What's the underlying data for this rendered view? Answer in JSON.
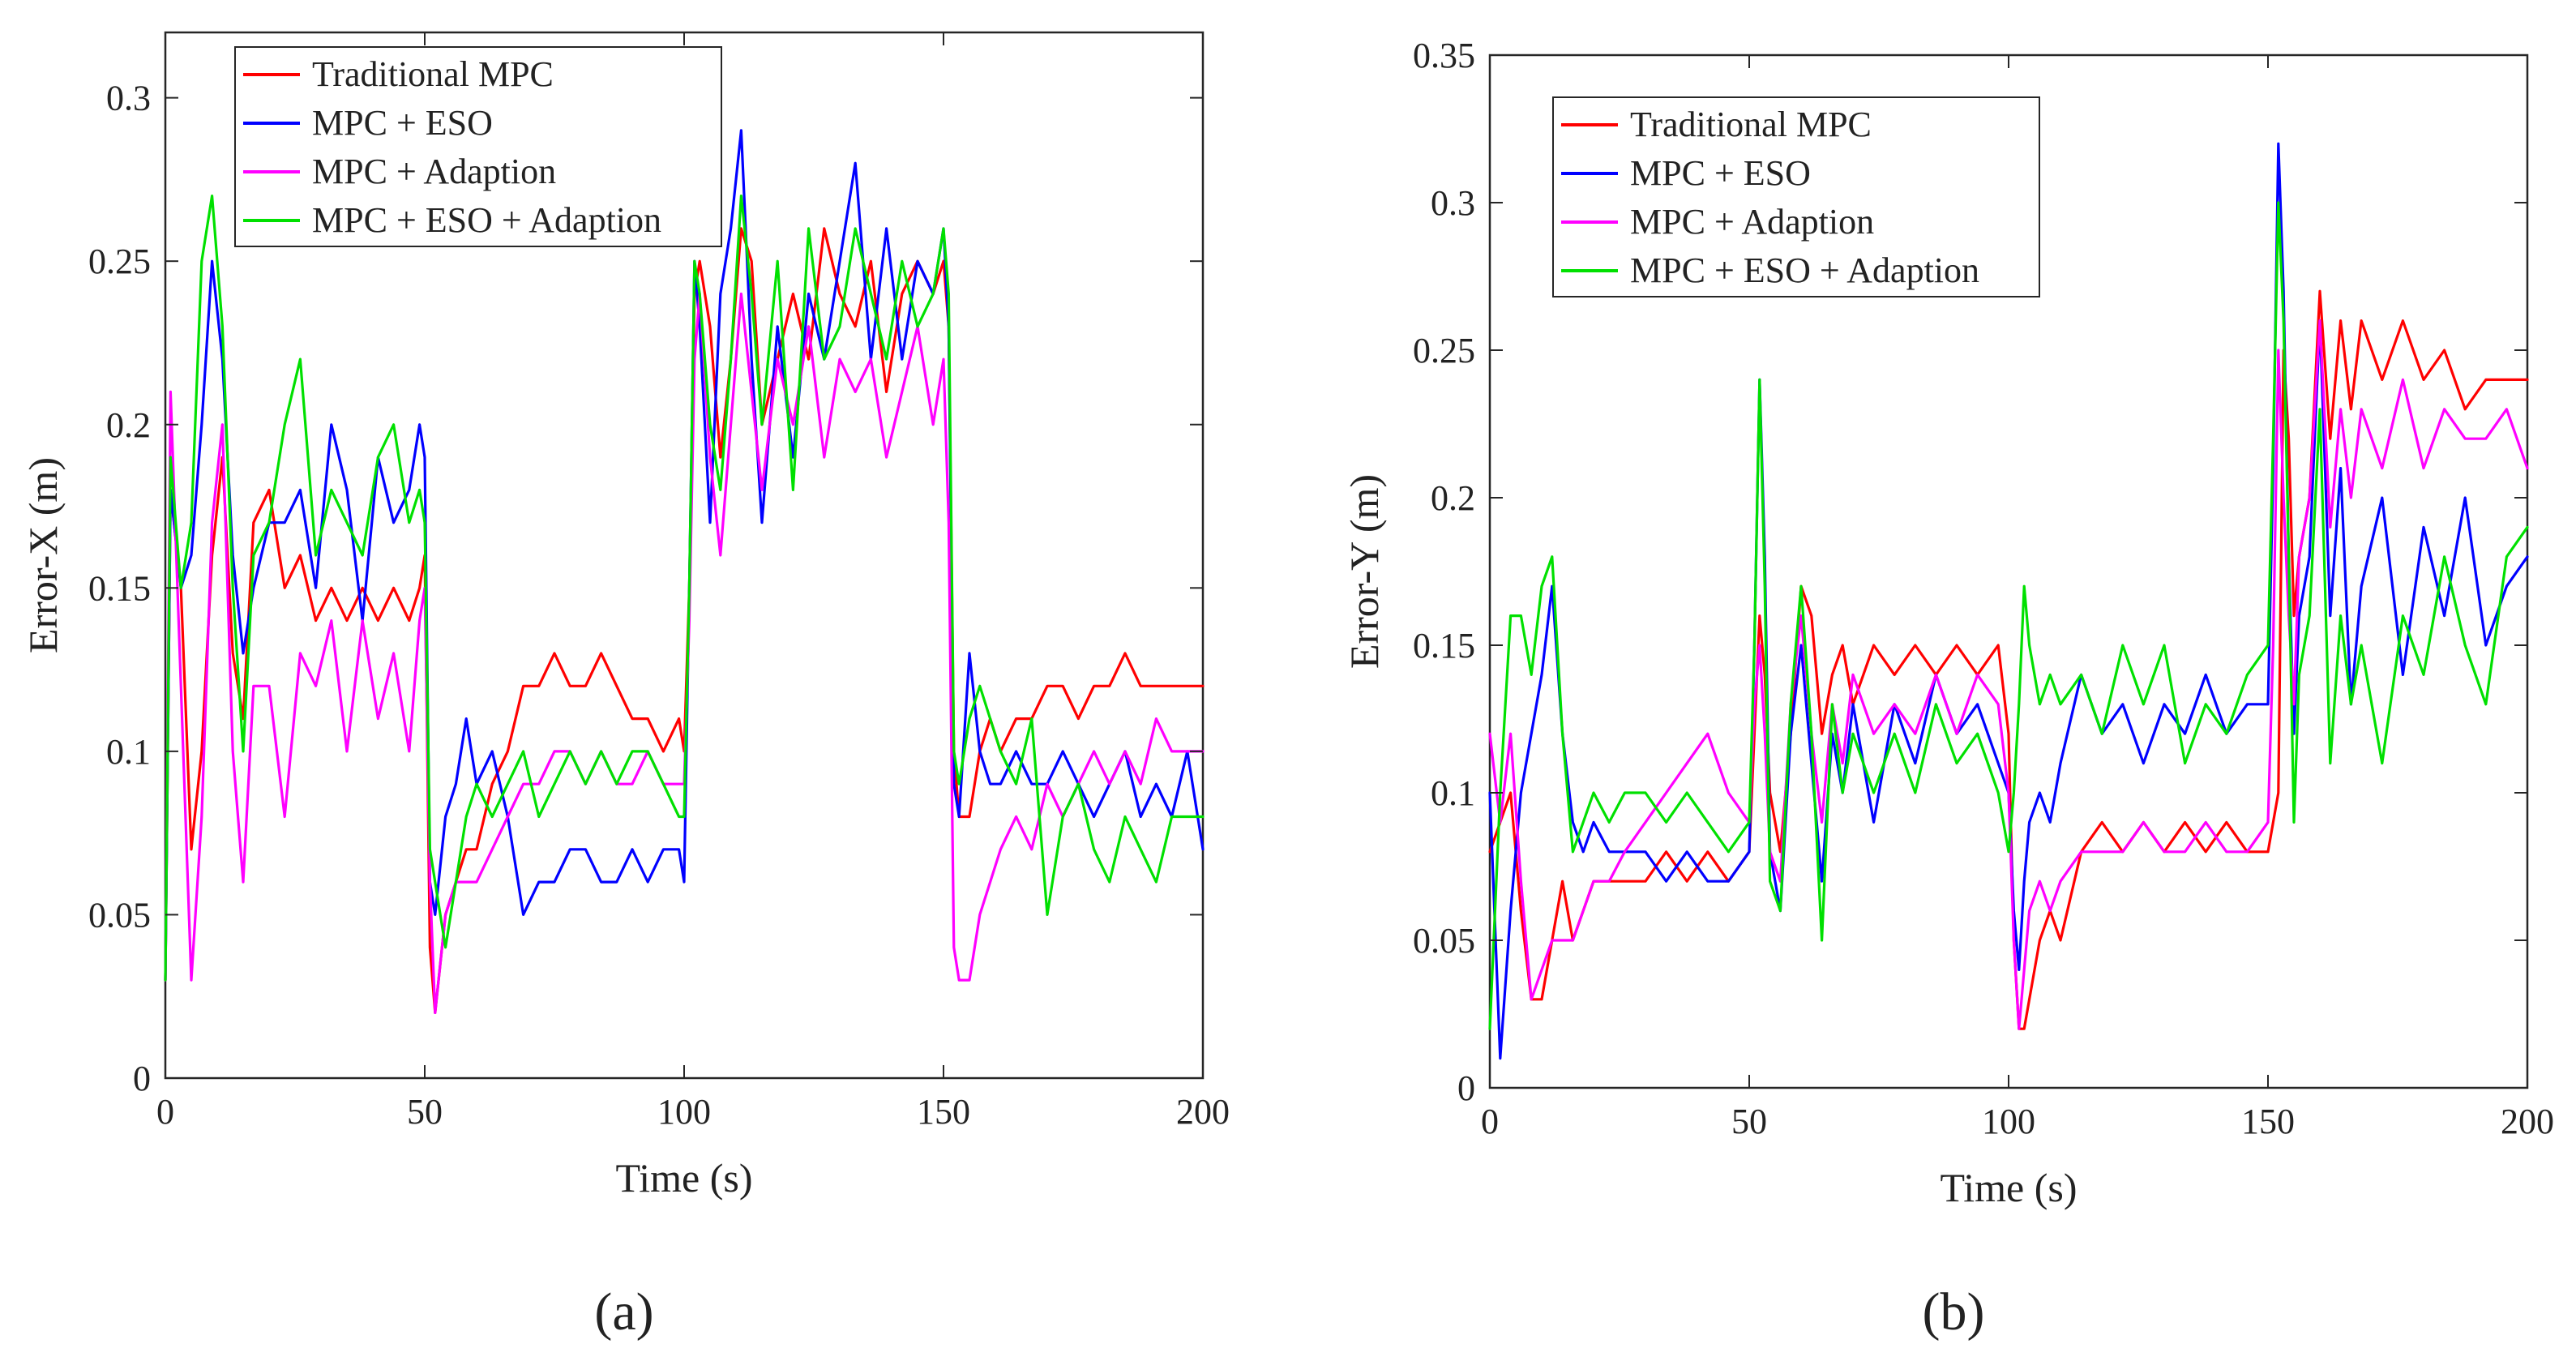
{
  "figure": {
    "panel_labels": [
      "(a)",
      "(b)"
    ]
  },
  "chart_data": [
    {
      "type": "line",
      "panel": "a",
      "xlabel": "Time (s)",
      "ylabel": "Error-X (m)",
      "xlim": [
        0,
        200
      ],
      "ylim": [
        0,
        0.32
      ],
      "xticks": [
        0,
        50,
        100,
        150,
        200
      ],
      "xtick_labels": [
        "0",
        "50",
        "100",
        "150",
        "200"
      ],
      "yticks": [
        0,
        0.05,
        0.1,
        0.15,
        0.2,
        0.25,
        0.3
      ],
      "ytick_labels": [
        "0",
        "0.05",
        "0.1",
        "0.15",
        "0.2",
        "0.25",
        "0.3"
      ],
      "grid": false,
      "legend_position": "top-left",
      "x": [
        0,
        1,
        3,
        5,
        7,
        9,
        11,
        13,
        15,
        17,
        20,
        23,
        26,
        29,
        32,
        35,
        38,
        41,
        44,
        47,
        49,
        50,
        51,
        52,
        54,
        56,
        58,
        60,
        63,
        66,
        69,
        72,
        75,
        78,
        81,
        84,
        87,
        90,
        93,
        96,
        99,
        100,
        101,
        102,
        103,
        105,
        107,
        109,
        111,
        113,
        115,
        118,
        121,
        124,
        127,
        130,
        133,
        136,
        139,
        142,
        145,
        148,
        150,
        151,
        152,
        153,
        155,
        157,
        159,
        161,
        164,
        167,
        170,
        173,
        176,
        179,
        182,
        185,
        188,
        191,
        194,
        197,
        200
      ],
      "series": [
        {
          "name": "Traditional MPC",
          "color": "#ff0000",
          "values": [
            0.03,
            0.18,
            0.15,
            0.07,
            0.1,
            0.16,
            0.19,
            0.13,
            0.11,
            0.17,
            0.18,
            0.15,
            0.16,
            0.14,
            0.15,
            0.14,
            0.15,
            0.14,
            0.15,
            0.14,
            0.15,
            0.16,
            0.04,
            0.02,
            0.05,
            0.06,
            0.07,
            0.07,
            0.09,
            0.1,
            0.12,
            0.12,
            0.13,
            0.12,
            0.12,
            0.13,
            0.12,
            0.11,
            0.11,
            0.1,
            0.11,
            0.1,
            0.15,
            0.24,
            0.25,
            0.23,
            0.19,
            0.22,
            0.26,
            0.25,
            0.2,
            0.22,
            0.24,
            0.22,
            0.26,
            0.24,
            0.23,
            0.25,
            0.21,
            0.24,
            0.25,
            0.24,
            0.25,
            0.23,
            0.1,
            0.08,
            0.08,
            0.1,
            0.11,
            0.1,
            0.11,
            0.11,
            0.12,
            0.12,
            0.11,
            0.12,
            0.12,
            0.13,
            0.12,
            0.12,
            0.12,
            0.12,
            0.12
          ]
        },
        {
          "name": "MPC + ESO",
          "color": "#0000ff",
          "values": [
            0.03,
            0.18,
            0.15,
            0.16,
            0.2,
            0.25,
            0.22,
            0.16,
            0.13,
            0.15,
            0.17,
            0.17,
            0.18,
            0.15,
            0.2,
            0.18,
            0.14,
            0.19,
            0.17,
            0.18,
            0.2,
            0.19,
            0.06,
            0.05,
            0.08,
            0.09,
            0.11,
            0.09,
            0.1,
            0.08,
            0.05,
            0.06,
            0.06,
            0.07,
            0.07,
            0.06,
            0.06,
            0.07,
            0.06,
            0.07,
            0.07,
            0.06,
            0.15,
            0.25,
            0.23,
            0.17,
            0.24,
            0.26,
            0.29,
            0.22,
            0.17,
            0.23,
            0.19,
            0.24,
            0.22,
            0.25,
            0.28,
            0.22,
            0.26,
            0.22,
            0.25,
            0.24,
            0.26,
            0.23,
            0.09,
            0.08,
            0.13,
            0.1,
            0.09,
            0.09,
            0.1,
            0.09,
            0.09,
            0.1,
            0.09,
            0.08,
            0.09,
            0.1,
            0.08,
            0.09,
            0.08,
            0.1,
            0.07
          ]
        },
        {
          "name": "MPC + Adaption",
          "color": "#ff00ff",
          "values": [
            0.03,
            0.21,
            0.12,
            0.03,
            0.08,
            0.17,
            0.2,
            0.1,
            0.06,
            0.12,
            0.12,
            0.08,
            0.13,
            0.12,
            0.14,
            0.1,
            0.14,
            0.11,
            0.13,
            0.1,
            0.14,
            0.15,
            0.06,
            0.02,
            0.05,
            0.06,
            0.06,
            0.06,
            0.07,
            0.08,
            0.09,
            0.09,
            0.1,
            0.1,
            0.09,
            0.1,
            0.09,
            0.09,
            0.1,
            0.09,
            0.09,
            0.09,
            0.14,
            0.22,
            0.24,
            0.19,
            0.16,
            0.2,
            0.24,
            0.21,
            0.18,
            0.22,
            0.2,
            0.23,
            0.19,
            0.22,
            0.21,
            0.22,
            0.19,
            0.21,
            0.23,
            0.2,
            0.22,
            0.17,
            0.04,
            0.03,
            0.03,
            0.05,
            0.06,
            0.07,
            0.08,
            0.07,
            0.09,
            0.08,
            0.09,
            0.1,
            0.09,
            0.1,
            0.09,
            0.11,
            0.1,
            0.1,
            0.1
          ]
        },
        {
          "name": "MPC + ESO + Adaption",
          "color": "#00e000",
          "values": [
            0.03,
            0.19,
            0.15,
            0.17,
            0.25,
            0.27,
            0.23,
            0.15,
            0.1,
            0.16,
            0.17,
            0.2,
            0.22,
            0.16,
            0.18,
            0.17,
            0.16,
            0.19,
            0.2,
            0.17,
            0.18,
            0.17,
            0.07,
            0.06,
            0.04,
            0.06,
            0.08,
            0.09,
            0.08,
            0.09,
            0.1,
            0.08,
            0.09,
            0.1,
            0.09,
            0.1,
            0.09,
            0.1,
            0.1,
            0.09,
            0.08,
            0.08,
            0.15,
            0.25,
            0.24,
            0.2,
            0.18,
            0.22,
            0.27,
            0.24,
            0.2,
            0.25,
            0.18,
            0.26,
            0.22,
            0.23,
            0.26,
            0.24,
            0.22,
            0.25,
            0.23,
            0.24,
            0.26,
            0.24,
            0.1,
            0.09,
            0.11,
            0.12,
            0.11,
            0.1,
            0.09,
            0.11,
            0.05,
            0.08,
            0.09,
            0.07,
            0.06,
            0.08,
            0.07,
            0.06,
            0.08,
            0.08,
            0.08
          ]
        }
      ]
    },
    {
      "type": "line",
      "panel": "b",
      "xlabel": "Time (s)",
      "ylabel": "Error-Y (m)",
      "xlim": [
        0,
        200
      ],
      "ylim": [
        0,
        0.35
      ],
      "xticks": [
        0,
        50,
        100,
        150,
        200
      ],
      "xtick_labels": [
        "0",
        "50",
        "100",
        "150",
        "200"
      ],
      "yticks": [
        0,
        0.05,
        0.1,
        0.15,
        0.2,
        0.25,
        0.3,
        0.35
      ],
      "ytick_labels": [
        "0",
        "0.05",
        "0.1",
        "0.15",
        "0.2",
        "0.25",
        "0.3",
        "0.35"
      ],
      "grid": false,
      "legend_position": "top-left",
      "x": [
        0,
        2,
        4,
        6,
        8,
        10,
        12,
        14,
        16,
        18,
        20,
        23,
        26,
        30,
        34,
        38,
        42,
        46,
        50,
        51,
        52,
        53,
        54,
        56,
        58,
        60,
        62,
        64,
        66,
        68,
        70,
        74,
        78,
        82,
        86,
        90,
        94,
        98,
        100,
        101,
        102,
        103,
        104,
        106,
        108,
        110,
        114,
        118,
        122,
        126,
        130,
        134,
        138,
        142,
        146,
        150,
        151,
        152,
        153,
        154,
        155,
        156,
        158,
        160,
        162,
        164,
        166,
        168,
        172,
        176,
        180,
        184,
        188,
        192,
        196,
        200
      ],
      "series": [
        {
          "name": "Traditional MPC",
          "color": "#ff0000",
          "values": [
            0.08,
            0.09,
            0.1,
            0.06,
            0.03,
            0.03,
            0.05,
            0.07,
            0.05,
            0.06,
            0.07,
            0.07,
            0.07,
            0.07,
            0.08,
            0.07,
            0.08,
            0.07,
            0.08,
            0.12,
            0.16,
            0.14,
            0.1,
            0.08,
            0.12,
            0.17,
            0.16,
            0.12,
            0.14,
            0.15,
            0.13,
            0.15,
            0.14,
            0.15,
            0.14,
            0.15,
            0.14,
            0.15,
            0.12,
            0.05,
            0.02,
            0.02,
            0.03,
            0.05,
            0.06,
            0.05,
            0.08,
            0.09,
            0.08,
            0.09,
            0.08,
            0.09,
            0.08,
            0.09,
            0.08,
            0.08,
            0.09,
            0.1,
            0.25,
            0.22,
            0.16,
            0.18,
            0.2,
            0.27,
            0.22,
            0.26,
            0.23,
            0.26,
            0.24,
            0.26,
            0.24,
            0.25,
            0.23,
            0.24,
            0.24,
            0.24
          ]
        },
        {
          "name": "MPC + ESO",
          "color": "#0000ff",
          "values": [
            0.1,
            0.01,
            0.06,
            0.1,
            0.12,
            0.14,
            0.17,
            0.12,
            0.09,
            0.08,
            0.09,
            0.08,
            0.08,
            0.08,
            0.07,
            0.08,
            0.07,
            0.07,
            0.08,
            0.15,
            0.24,
            0.18,
            0.08,
            0.06,
            0.12,
            0.15,
            0.11,
            0.07,
            0.12,
            0.1,
            0.13,
            0.09,
            0.13,
            0.11,
            0.14,
            0.12,
            0.13,
            0.11,
            0.1,
            0.06,
            0.04,
            0.07,
            0.09,
            0.1,
            0.09,
            0.11,
            0.14,
            0.12,
            0.13,
            0.11,
            0.13,
            0.12,
            0.14,
            0.12,
            0.13,
            0.13,
            0.21,
            0.32,
            0.27,
            0.18,
            0.12,
            0.16,
            0.18,
            0.26,
            0.16,
            0.21,
            0.13,
            0.17,
            0.2,
            0.14,
            0.19,
            0.16,
            0.2,
            0.15,
            0.17,
            0.18
          ]
        },
        {
          "name": "MPC + Adaption",
          "color": "#ff00ff",
          "values": [
            0.12,
            0.09,
            0.12,
            0.07,
            0.03,
            0.04,
            0.05,
            0.05,
            0.05,
            0.06,
            0.07,
            0.07,
            0.08,
            0.09,
            0.1,
            0.11,
            0.12,
            0.1,
            0.09,
            0.13,
            0.15,
            0.12,
            0.08,
            0.07,
            0.13,
            0.16,
            0.12,
            0.09,
            0.13,
            0.11,
            0.14,
            0.12,
            0.13,
            0.12,
            0.14,
            0.12,
            0.14,
            0.13,
            0.1,
            0.05,
            0.02,
            0.04,
            0.06,
            0.07,
            0.06,
            0.07,
            0.08,
            0.08,
            0.08,
            0.09,
            0.08,
            0.08,
            0.09,
            0.08,
            0.08,
            0.09,
            0.15,
            0.25,
            0.2,
            0.16,
            0.13,
            0.18,
            0.2,
            0.26,
            0.19,
            0.23,
            0.2,
            0.23,
            0.21,
            0.24,
            0.21,
            0.23,
            0.22,
            0.22,
            0.23,
            0.21
          ]
        },
        {
          "name": "MPC + ESO + Adaption",
          "color": "#00e000",
          "values": [
            0.02,
            0.1,
            0.16,
            0.16,
            0.14,
            0.17,
            0.18,
            0.12,
            0.08,
            0.09,
            0.1,
            0.09,
            0.1,
            0.1,
            0.09,
            0.1,
            0.09,
            0.08,
            0.09,
            0.15,
            0.24,
            0.17,
            0.07,
            0.06,
            0.13,
            0.17,
            0.12,
            0.05,
            0.13,
            0.1,
            0.12,
            0.1,
            0.12,
            0.1,
            0.13,
            0.11,
            0.12,
            0.1,
            0.08,
            0.1,
            0.13,
            0.17,
            0.15,
            0.13,
            0.14,
            0.13,
            0.14,
            0.12,
            0.15,
            0.13,
            0.15,
            0.11,
            0.13,
            0.12,
            0.14,
            0.15,
            0.22,
            0.3,
            0.26,
            0.18,
            0.09,
            0.14,
            0.16,
            0.23,
            0.11,
            0.16,
            0.13,
            0.15,
            0.11,
            0.16,
            0.14,
            0.18,
            0.15,
            0.13,
            0.18,
            0.19
          ]
        }
      ]
    }
  ]
}
